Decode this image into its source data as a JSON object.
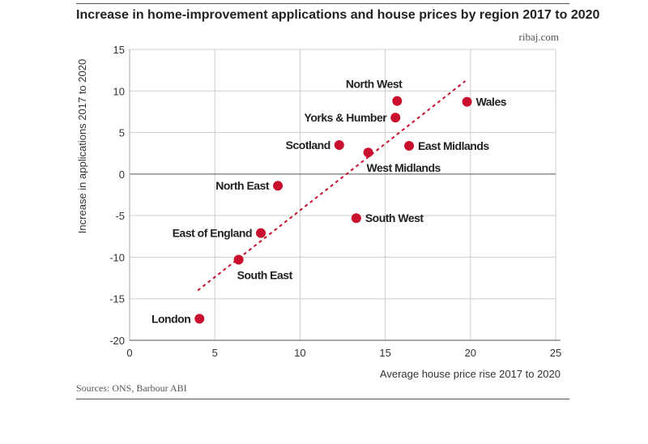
{
  "header": {
    "title": "Increase in home-improvement applications and house prices by region 2017 to 2020",
    "site": "ribaj.com"
  },
  "footer": {
    "sources": "Sources: ONS, Barbour ABI"
  },
  "chart_data": {
    "type": "scatter",
    "title": "Increase in home-improvement applications and house prices by region 2017 to 2020",
    "xlabel": "Average house price rise 2017 to 2020",
    "ylabel": "Increase in applications 2017 to 2020",
    "xlim": [
      0,
      25
    ],
    "ylim": [
      -20,
      15
    ],
    "xticks": [
      0,
      5,
      10,
      15,
      20,
      25
    ],
    "yticks": [
      -20,
      -15,
      -10,
      -5,
      0,
      5,
      10,
      15
    ],
    "grid": true,
    "point_color": "#c8102e",
    "trendline": {
      "style": "dashed",
      "color": "#c8102e",
      "from": [
        4,
        -14
      ],
      "to": [
        19.7,
        11.2
      ]
    },
    "points": [
      {
        "label": "North West",
        "x": 15.7,
        "y": 8.8,
        "label_pos": "above-left"
      },
      {
        "label": "Wales",
        "x": 19.8,
        "y": 8.7,
        "label_pos": "right"
      },
      {
        "label": "Yorks & Humber",
        "x": 15.6,
        "y": 6.8,
        "label_pos": "left"
      },
      {
        "label": "Scotland",
        "x": 12.3,
        "y": 3.5,
        "label_pos": "left"
      },
      {
        "label": "East Midlands",
        "x": 16.4,
        "y": 3.4,
        "label_pos": "right"
      },
      {
        "label": "West Midlands",
        "x": 14.0,
        "y": 2.6,
        "label_pos": "below-right"
      },
      {
        "label": "North East",
        "x": 8.7,
        "y": -1.4,
        "label_pos": "left"
      },
      {
        "label": "South West",
        "x": 13.3,
        "y": -5.3,
        "label_pos": "right"
      },
      {
        "label": "East of England",
        "x": 7.7,
        "y": -7.1,
        "label_pos": "left"
      },
      {
        "label": "South East",
        "x": 6.4,
        "y": -10.3,
        "label_pos": "below-right"
      },
      {
        "label": "London",
        "x": 4.1,
        "y": -17.4,
        "label_pos": "left"
      }
    ]
  }
}
